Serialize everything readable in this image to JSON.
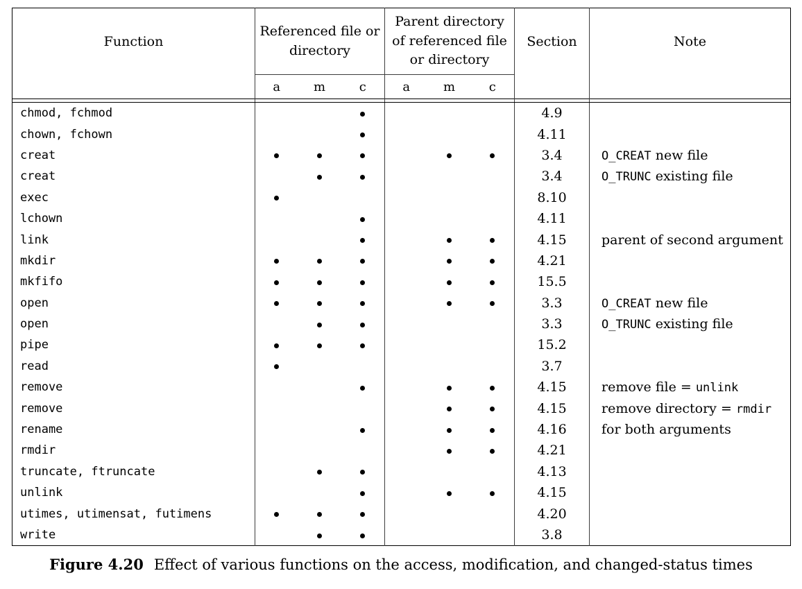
{
  "ui": {
    "colors": {
      "background": "#ffffff",
      "text": "#000000",
      "line": "#3c3c3c",
      "line_strong": "#000000"
    },
    "icons": {
      "time-marker-dot": "•"
    }
  },
  "table": {
    "headers": {
      "function": "Function",
      "referenced": "Referenced file or directory",
      "parent": "Parent directory of referenced file or directory",
      "section": "Section",
      "note": "Note",
      "sub": [
        "a",
        "m",
        "c"
      ]
    },
    "rows": [
      {
        "function": "chmod, fchmod",
        "ref": [
          0,
          0,
          1
        ],
        "parent": [
          0,
          0,
          0
        ],
        "section": "4.9",
        "note": []
      },
      {
        "function": "chown, fchown",
        "ref": [
          0,
          0,
          1
        ],
        "parent": [
          0,
          0,
          0
        ],
        "section": "4.11",
        "note": []
      },
      {
        "function": "creat",
        "ref": [
          1,
          1,
          1
        ],
        "parent": [
          0,
          1,
          1
        ],
        "section": "3.4",
        "note": [
          {
            "text": "O_CREAT",
            "mono": true
          },
          {
            "text": " new file",
            "mono": false
          }
        ]
      },
      {
        "function": "creat",
        "ref": [
          0,
          1,
          1
        ],
        "parent": [
          0,
          0,
          0
        ],
        "section": "3.4",
        "note": [
          {
            "text": "O_TRUNC",
            "mono": true
          },
          {
            "text": " existing file",
            "mono": false
          }
        ]
      },
      {
        "function": "exec",
        "ref": [
          1,
          0,
          0
        ],
        "parent": [
          0,
          0,
          0
        ],
        "section": "8.10",
        "note": []
      },
      {
        "function": "lchown",
        "ref": [
          0,
          0,
          1
        ],
        "parent": [
          0,
          0,
          0
        ],
        "section": "4.11",
        "note": []
      },
      {
        "function": "link",
        "ref": [
          0,
          0,
          1
        ],
        "parent": [
          0,
          1,
          1
        ],
        "section": "4.15",
        "note": [
          {
            "text": "parent of second argument",
            "mono": false
          }
        ]
      },
      {
        "function": "mkdir",
        "ref": [
          1,
          1,
          1
        ],
        "parent": [
          0,
          1,
          1
        ],
        "section": "4.21",
        "note": []
      },
      {
        "function": "mkfifo",
        "ref": [
          1,
          1,
          1
        ],
        "parent": [
          0,
          1,
          1
        ],
        "section": "15.5",
        "note": []
      },
      {
        "function": "open",
        "ref": [
          1,
          1,
          1
        ],
        "parent": [
          0,
          1,
          1
        ],
        "section": "3.3",
        "note": [
          {
            "text": "O_CREAT",
            "mono": true
          },
          {
            "text": " new file",
            "mono": false
          }
        ]
      },
      {
        "function": "open",
        "ref": [
          0,
          1,
          1
        ],
        "parent": [
          0,
          0,
          0
        ],
        "section": "3.3",
        "note": [
          {
            "text": "O_TRUNC",
            "mono": true
          },
          {
            "text": " existing file",
            "mono": false
          }
        ]
      },
      {
        "function": "pipe",
        "ref": [
          1,
          1,
          1
        ],
        "parent": [
          0,
          0,
          0
        ],
        "section": "15.2",
        "note": []
      },
      {
        "function": "read",
        "ref": [
          1,
          0,
          0
        ],
        "parent": [
          0,
          0,
          0
        ],
        "section": "3.7",
        "note": []
      },
      {
        "function": "remove",
        "ref": [
          0,
          0,
          1
        ],
        "parent": [
          0,
          1,
          1
        ],
        "section": "4.15",
        "note": [
          {
            "text": "remove file = ",
            "mono": false
          },
          {
            "text": "unlink",
            "mono": true
          }
        ]
      },
      {
        "function": "remove",
        "ref": [
          0,
          0,
          0
        ],
        "parent": [
          0,
          1,
          1
        ],
        "section": "4.15",
        "note": [
          {
            "text": "remove directory = ",
            "mono": false
          },
          {
            "text": "rmdir",
            "mono": true
          }
        ]
      },
      {
        "function": "rename",
        "ref": [
          0,
          0,
          1
        ],
        "parent": [
          0,
          1,
          1
        ],
        "section": "4.16",
        "note": [
          {
            "text": "for both arguments",
            "mono": false
          }
        ]
      },
      {
        "function": "rmdir",
        "ref": [
          0,
          0,
          0
        ],
        "parent": [
          0,
          1,
          1
        ],
        "section": "4.21",
        "note": []
      },
      {
        "function": "truncate, ftruncate",
        "ref": [
          0,
          1,
          1
        ],
        "parent": [
          0,
          0,
          0
        ],
        "section": "4.13",
        "note": []
      },
      {
        "function": "unlink",
        "ref": [
          0,
          0,
          1
        ],
        "parent": [
          0,
          1,
          1
        ],
        "section": "4.15",
        "note": []
      },
      {
        "function": "utimes, utimensat, futimens",
        "ref": [
          1,
          1,
          1
        ],
        "parent": [
          0,
          0,
          0
        ],
        "section": "4.20",
        "note": []
      },
      {
        "function": "write",
        "ref": [
          0,
          1,
          1
        ],
        "parent": [
          0,
          0,
          0
        ],
        "section": "3.8",
        "note": []
      }
    ]
  },
  "caption": {
    "label": "Figure 4.20",
    "text": "Effect of various functions on the access, modification, and changed-status times"
  }
}
